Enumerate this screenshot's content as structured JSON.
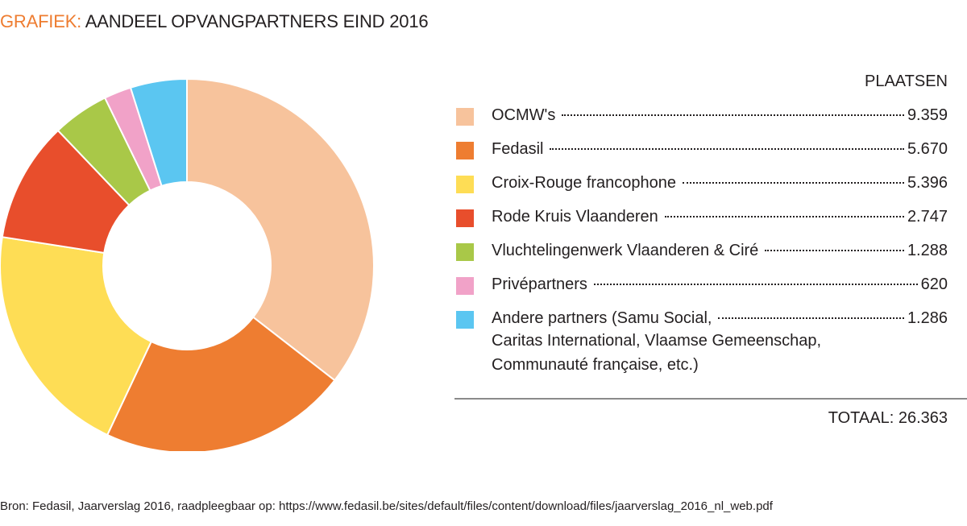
{
  "title": {
    "prefix": "GRAFIEK:",
    "text": "AANDEEL OPVANGPARTNERS EIND 2016"
  },
  "column_header": "PLAATSEN",
  "legend": [
    {
      "label": "OCMW's",
      "value": "9.359",
      "color": "#f7c39c"
    },
    {
      "label": "Fedasil",
      "value": "5.670",
      "color": "#ee7d31"
    },
    {
      "label": "Croix-Rouge francophone",
      "value": "5.396",
      "color": "#fedd55"
    },
    {
      "label": "Rode Kruis Vlaanderen",
      "value": "2.747",
      "color": "#e84e2c"
    },
    {
      "label": "Vluchtelingenwerk Vlaanderen & Ciré",
      "value": "1.288",
      "color": "#a9c848"
    },
    {
      "label": "Privépartners",
      "value": "620",
      "color": "#f1a2c8"
    },
    {
      "label": "Andere partners (Samu Social,",
      "label_cont": [
        "Caritas International, Vlaamse Gemeenschap,",
        "Communauté française, etc.)"
      ],
      "value": "1.286",
      "color": "#5bc6f1"
    }
  ],
  "total": "TOTAAL: 26.363",
  "source": "Bron: Fedasil, Jaarverslag 2016, raadpleegbaar op: https://www.fedasil.be/sites/default/files/content/download/files/jaarverslag_2016_nl_web.pdf",
  "chart_data": {
    "type": "pie",
    "donut": true,
    "start_angle_deg": 0,
    "direction": "clockwise",
    "categories": [
      "OCMW's",
      "Fedasil",
      "Croix-Rouge francophone",
      "Rode Kruis Vlaanderen",
      "Vluchtelingenwerk Vlaanderen & Ciré",
      "Privépartners",
      "Andere partners (Samu Social, Caritas International, Vlaamse Gemeenschap, Communauté française, etc.)"
    ],
    "values": [
      9359,
      5670,
      5396,
      2747,
      1288,
      620,
      1286
    ],
    "colors": [
      "#f7c39c",
      "#ee7d31",
      "#fedd55",
      "#e84e2c",
      "#a9c848",
      "#f1a2c8",
      "#5bc6f1"
    ],
    "total": 26363
  }
}
